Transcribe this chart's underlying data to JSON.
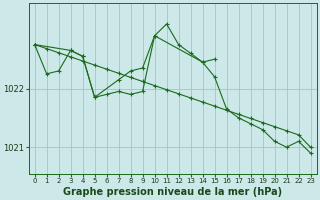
{
  "background_color": "#cce8e8",
  "plot_bg_color": "#cce8e8",
  "grid_color": "#99ccbb",
  "line_color": "#1a6b1a",
  "marker_color": "#1a6b1a",
  "xlabel": "Graphe pression niveau de la mer (hPa)",
  "xlabel_fontsize": 7,
  "xlim": [
    -0.5,
    23.5
  ],
  "ylim": [
    1020.55,
    1023.45
  ],
  "yticks": [
    1021,
    1022
  ],
  "xticks": [
    0,
    1,
    2,
    3,
    4,
    5,
    6,
    7,
    8,
    9,
    10,
    11,
    12,
    13,
    14,
    15,
    16,
    17,
    18,
    19,
    20,
    21,
    22,
    23
  ],
  "series1_x": [
    0,
    1,
    2,
    3,
    4,
    5,
    6,
    7,
    8,
    9,
    10,
    11,
    12,
    13,
    14,
    15,
    16,
    17,
    18,
    19,
    20,
    21,
    22,
    23
  ],
  "series1_y": [
    1022.75,
    1022.25,
    1022.3,
    1022.65,
    1022.55,
    1021.85,
    1021.9,
    1021.95,
    1021.9,
    1021.95,
    1022.9,
    1023.1,
    1022.75,
    1022.6,
    1022.45,
    1022.2,
    1021.65,
    1021.5,
    1021.4,
    1021.3,
    1021.1,
    1021.0,
    1021.1,
    1020.9
  ],
  "series2_x": [
    0,
    3,
    4,
    5,
    7,
    8,
    9,
    10,
    14,
    15
  ],
  "series2_y": [
    1022.75,
    1022.65,
    1022.55,
    1021.85,
    1022.15,
    1022.3,
    1022.35,
    1022.9,
    1022.45,
    1022.5
  ],
  "series3_x": [
    0,
    1,
    2,
    3,
    4,
    5,
    6,
    7,
    8,
    9,
    10,
    11,
    12,
    13,
    14,
    15,
    16,
    17,
    18,
    19,
    20,
    21,
    22,
    23
  ],
  "series3_y": [
    1022.75,
    1022.68,
    1022.61,
    1022.54,
    1022.47,
    1022.4,
    1022.33,
    1022.26,
    1022.19,
    1022.12,
    1022.05,
    1021.98,
    1021.91,
    1021.84,
    1021.77,
    1021.7,
    1021.63,
    1021.56,
    1021.49,
    1021.42,
    1021.35,
    1021.28,
    1021.21,
    1021.0
  ]
}
